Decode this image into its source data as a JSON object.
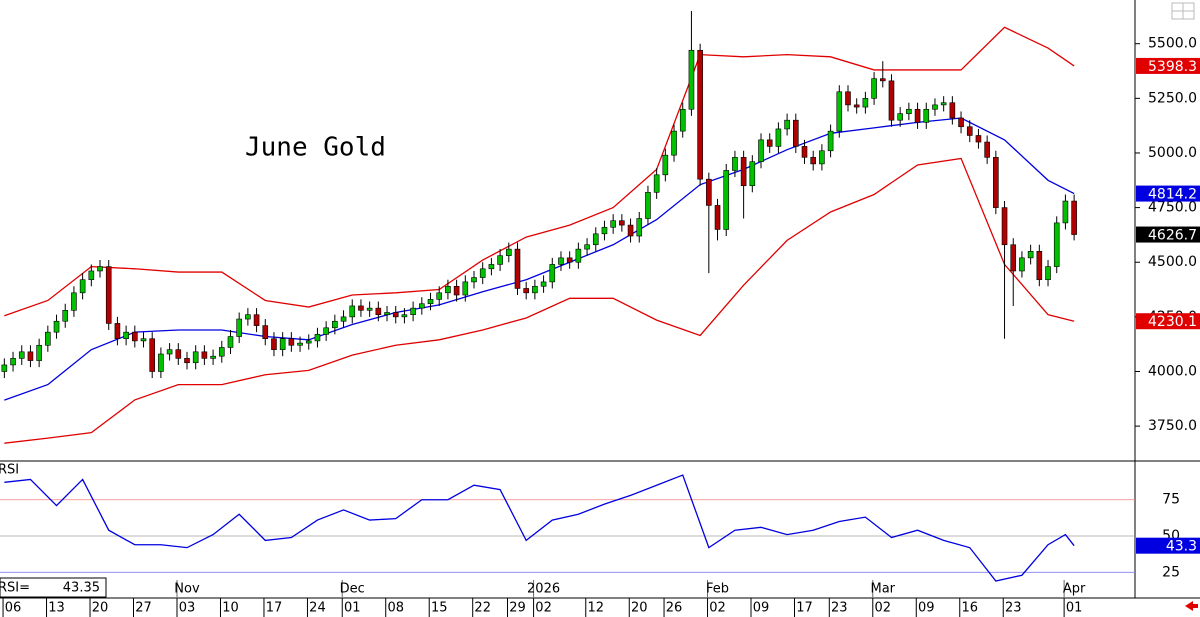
{
  "chart_data": [
    {
      "type": "candlestick",
      "title": "June Gold",
      "open": [
        4000,
        4030,
        4060,
        4090,
        4050,
        4120,
        4180,
        4230,
        4280,
        4360,
        4420,
        4460,
        4480,
        4220,
        4150,
        4180,
        4140,
        4150,
        4000,
        4080,
        4100,
        4060,
        4040,
        4090,
        4060,
        4070,
        4110,
        4160,
        4240,
        4260,
        4210,
        4150,
        4100,
        4150,
        4120,
        4130,
        4140,
        4170,
        4200,
        4230,
        4250,
        4300,
        4280,
        4290,
        4260,
        4270,
        4250,
        4260,
        4290,
        4310,
        4330,
        4360,
        4390,
        4350,
        4410,
        4430,
        4470,
        4490,
        4530,
        4560,
        4380,
        4360,
        4390,
        4410,
        4490,
        4520,
        4500,
        4560,
        4580,
        4630,
        4660,
        4690,
        4670,
        4620,
        4700,
        4820,
        4900,
        4990,
        5100,
        5200,
        5470,
        4880,
        4760,
        4650,
        4920,
        4980,
        4850,
        4960,
        5060,
        5030,
        5110,
        5150,
        5030,
        4980,
        4950,
        5010,
        5100,
        5280,
        5220,
        5210,
        5250,
        5340,
        5330,
        5150,
        5180,
        5200,
        5140,
        5200,
        5220,
        5230,
        5160,
        5120,
        5080,
        5050,
        4980,
        4750,
        4580,
        4460,
        4520,
        4550,
        4420,
        4480,
        4680,
        4780
      ],
      "high": [
        4060,
        4090,
        4120,
        4120,
        4150,
        4210,
        4260,
        4310,
        4390,
        4450,
        4490,
        4510,
        4510,
        4250,
        4210,
        4210,
        4180,
        4180,
        4110,
        4130,
        4130,
        4090,
        4120,
        4120,
        4100,
        4140,
        4190,
        4270,
        4290,
        4290,
        4240,
        4180,
        4180,
        4180,
        4160,
        4170,
        4200,
        4230,
        4260,
        4280,
        4330,
        4330,
        4320,
        4320,
        4300,
        4300,
        4290,
        4320,
        4340,
        4360,
        4390,
        4420,
        4420,
        4440,
        4460,
        4500,
        4520,
        4560,
        4590,
        4590,
        4410,
        4420,
        4440,
        4520,
        4550,
        4550,
        4590,
        4610,
        4660,
        4690,
        4720,
        4720,
        4700,
        4730,
        4850,
        4930,
        5020,
        5130,
        5230,
        5650,
        5500,
        4910,
        4790,
        4950,
        5010,
        5010,
        4990,
        5090,
        5090,
        5140,
        5180,
        5180,
        5060,
        5010,
        5040,
        5130,
        5310,
        5310,
        5250,
        5280,
        5370,
        5420,
        5360,
        5210,
        5230,
        5230,
        5230,
        5250,
        5260,
        5260,
        5190,
        5150,
        5110,
        5080,
        5010,
        4780,
        4610,
        4550,
        4580,
        4580,
        4510,
        4710,
        4810,
        4810
      ],
      "low": [
        3970,
        4000,
        4030,
        4020,
        4020,
        4090,
        4150,
        4200,
        4250,
        4330,
        4390,
        4430,
        4190,
        4120,
        4120,
        4110,
        4110,
        3970,
        3970,
        4050,
        4030,
        4010,
        4010,
        4030,
        4030,
        4040,
        4080,
        4130,
        4210,
        4180,
        4120,
        4070,
        4070,
        4090,
        4090,
        4100,
        4110,
        4140,
        4170,
        4200,
        4220,
        4250,
        4250,
        4230,
        4230,
        4220,
        4220,
        4230,
        4260,
        4280,
        4300,
        4330,
        4320,
        4320,
        4380,
        4400,
        4440,
        4460,
        4500,
        4350,
        4330,
        4330,
        4360,
        4380,
        4460,
        4470,
        4470,
        4530,
        4550,
        4600,
        4630,
        4640,
        4590,
        4590,
        4670,
        4790,
        4870,
        4960,
        5070,
        5170,
        4850,
        4450,
        4600,
        4620,
        4890,
        4700,
        4820,
        4930,
        5000,
        5000,
        5080,
        5000,
        4950,
        4920,
        4920,
        4980,
        5070,
        5190,
        5180,
        5180,
        5220,
        5300,
        5120,
        5120,
        5150,
        5110,
        5110,
        5170,
        5190,
        5130,
        5090,
        5050,
        5020,
        4950,
        4720,
        4150,
        4300,
        4430,
        4490,
        4390,
        4390,
        4450,
        4650,
        4600
      ],
      "close": [
        4030,
        4060,
        4090,
        4050,
        4120,
        4180,
        4230,
        4280,
        4360,
        4420,
        4460,
        4480,
        4220,
        4150,
        4180,
        4140,
        4150,
        4000,
        4080,
        4100,
        4060,
        4040,
        4090,
        4060,
        4070,
        4110,
        4160,
        4240,
        4260,
        4210,
        4150,
        4100,
        4150,
        4120,
        4130,
        4140,
        4170,
        4200,
        4230,
        4250,
        4300,
        4280,
        4290,
        4260,
        4270,
        4250,
        4260,
        4290,
        4310,
        4330,
        4360,
        4390,
        4350,
        4410,
        4430,
        4470,
        4490,
        4530,
        4560,
        4380,
        4360,
        4390,
        4410,
        4490,
        4520,
        4500,
        4560,
        4580,
        4630,
        4660,
        4690,
        4670,
        4620,
        4700,
        4820,
        4900,
        4990,
        5100,
        5200,
        5470,
        4880,
        4760,
        4650,
        4920,
        4980,
        4850,
        4960,
        5060,
        5030,
        5110,
        5150,
        5030,
        4980,
        4950,
        5010,
        5100,
        5280,
        5220,
        5210,
        5250,
        5340,
        5330,
        5150,
        5180,
        5200,
        5140,
        5200,
        5220,
        5230,
        5160,
        5120,
        5080,
        5050,
        4980,
        4750,
        4580,
        4460,
        4520,
        4550,
        4420,
        4480,
        4680,
        4780,
        4626.7
      ],
      "up_color": "#00c000",
      "down_color": "#b00000",
      "close_badge_color": "#000000",
      "bands": [
        {
          "color": "#e00000",
          "x": [
            0,
            5,
            10,
            15,
            20,
            25,
            30,
            35,
            40,
            45,
            50,
            55,
            60,
            65,
            70,
            75,
            80,
            85,
            90,
            95,
            100,
            105,
            110,
            115,
            120,
            123
          ],
          "values": [
            4255,
            4325,
            4480,
            4470,
            4455,
            4455,
            4325,
            4295,
            4350,
            4360,
            4375,
            4510,
            4615,
            4670,
            4750,
            4925,
            5450,
            5440,
            5450,
            5440,
            5380,
            5380,
            5380,
            5575,
            5480,
            5398.3
          ]
        },
        {
          "color": "#0000e0",
          "x": [
            0,
            5,
            10,
            15,
            20,
            25,
            30,
            35,
            40,
            45,
            50,
            55,
            60,
            65,
            70,
            75,
            80,
            85,
            90,
            95,
            100,
            105,
            110,
            115,
            120,
            123
          ],
          "values": [
            3869,
            3940,
            4100,
            4180,
            4190,
            4190,
            4160,
            4145,
            4215,
            4270,
            4305,
            4365,
            4420,
            4500,
            4580,
            4695,
            4855,
            4925,
            5015,
            5090,
            5115,
            5140,
            5160,
            5060,
            4875,
            4814.2
          ]
        },
        {
          "color": "#e00000",
          "x": [
            0,
            5,
            10,
            15,
            20,
            25,
            30,
            35,
            40,
            45,
            50,
            55,
            60,
            65,
            70,
            75,
            80,
            85,
            90,
            95,
            100,
            105,
            110,
            115,
            120,
            123
          ],
          "values": [
            3672,
            3695,
            3720,
            3870,
            3940,
            3940,
            3985,
            4005,
            4075,
            4120,
            4145,
            4190,
            4245,
            4335,
            4335,
            4235,
            4165,
            4395,
            4600,
            4730,
            4810,
            4945,
            4975,
            4490,
            4260,
            4230.1
          ]
        }
      ],
      "xlim": [
        -0.5,
        130
      ],
      "ylim": [
        3595,
        5700
      ],
      "yticks": [
        {
          "value": 3750,
          "label": "3750.0"
        },
        {
          "value": 4000,
          "label": "4000.0"
        },
        {
          "value": 4250,
          "label": "4250.0"
        },
        {
          "value": 4500,
          "label": "4500.0"
        },
        {
          "value": 4750,
          "label": "4750.0"
        },
        {
          "value": 5000,
          "label": "5000.0"
        },
        {
          "value": 5250,
          "label": "5250.0"
        },
        {
          "value": 5500,
          "label": "5500.0"
        }
      ],
      "xticks": [
        {
          "value": 1,
          "label": "06"
        },
        {
          "value": 6,
          "label": "13"
        },
        {
          "value": 11,
          "label": "20"
        },
        {
          "value": 16,
          "label": "27"
        },
        {
          "value": 21,
          "label": "03"
        },
        {
          "value": 26,
          "label": "10"
        },
        {
          "value": 31,
          "label": "17"
        },
        {
          "value": 36,
          "label": "24"
        },
        {
          "value": 40,
          "label": "01"
        },
        {
          "value": 45,
          "label": "08"
        },
        {
          "value": 50,
          "label": "15"
        },
        {
          "value": 55,
          "label": "22"
        },
        {
          "value": 59,
          "label": "29"
        },
        {
          "value": 62,
          "label": "02"
        },
        {
          "value": 68,
          "label": "12"
        },
        {
          "value": 73,
          "label": "20"
        },
        {
          "value": 77,
          "label": "26"
        },
        {
          "value": 82,
          "label": "02"
        },
        {
          "value": 87,
          "label": "09"
        },
        {
          "value": 92,
          "label": "17"
        },
        {
          "value": 96,
          "label": "23"
        },
        {
          "value": 101,
          "label": "02"
        },
        {
          "value": 106,
          "label": "09"
        },
        {
          "value": 111,
          "label": "16"
        },
        {
          "value": 116,
          "label": "23"
        },
        {
          "value": 123,
          "label": "01"
        }
      ],
      "month_ticks": [
        {
          "value": 21,
          "label": "Nov"
        },
        {
          "value": 40,
          "label": "Dec"
        },
        {
          "value": 62,
          "label": "2026"
        },
        {
          "value": 82,
          "label": "Feb"
        },
        {
          "value": 101,
          "label": "Mar"
        },
        {
          "value": 123,
          "label": "Apr"
        }
      ]
    },
    {
      "type": "line",
      "title": "RSI",
      "readout_label": "RSI=",
      "color": "#0000e0",
      "x": [
        0,
        3,
        6,
        9,
        12,
        15,
        18,
        21,
        24,
        27,
        30,
        33,
        36,
        39,
        42,
        45,
        48,
        51,
        54,
        57,
        60,
        63,
        66,
        69,
        72,
        75,
        78,
        81,
        84,
        87,
        90,
        93,
        96,
        99,
        102,
        105,
        108,
        111,
        114,
        117,
        120,
        122,
        123
      ],
      "values": [
        87,
        89,
        71,
        89,
        54,
        44,
        44,
        42,
        51,
        65,
        47,
        49,
        61,
        68,
        61,
        62,
        75,
        75,
        85,
        82,
        47,
        61,
        65,
        72,
        78,
        85,
        92,
        42,
        54,
        56,
        51,
        54,
        60,
        63,
        49,
        54,
        47,
        42,
        19,
        23,
        44,
        51,
        43.35
      ],
      "last_label": "43.3",
      "xlim": [
        -0.5,
        130
      ],
      "ylim": [
        8,
        101
      ],
      "yticks": [
        25,
        50,
        75
      ],
      "grid": true,
      "grid_colors": [
        "#8080f0",
        "#a0a0a0",
        "#f08080"
      ]
    }
  ]
}
